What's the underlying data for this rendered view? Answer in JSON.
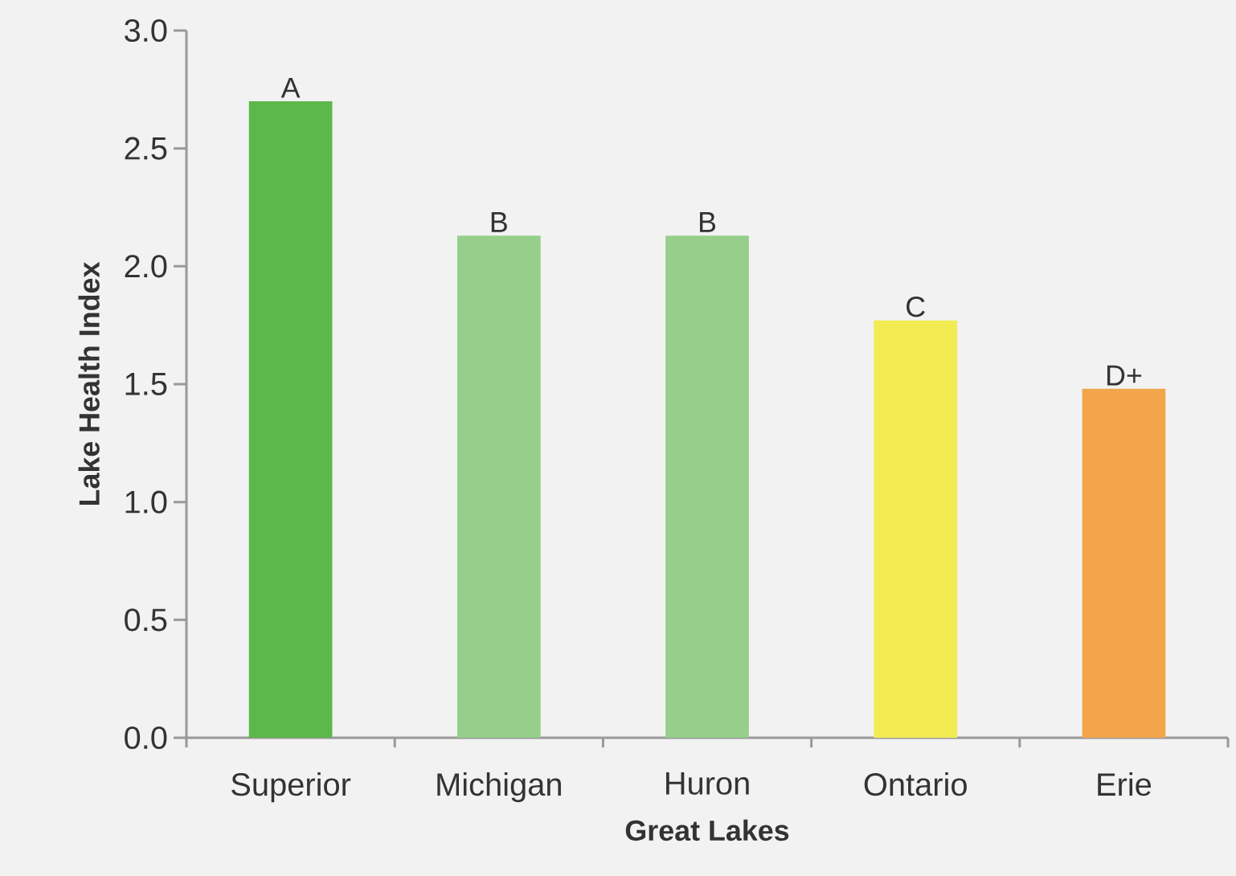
{
  "chart_data": {
    "type": "bar",
    "xlabel": "Great Lakes",
    "ylabel": "Lake Health Index",
    "categories": [
      "Superior",
      "Michigan",
      "Huron",
      "Ontario",
      "Erie"
    ],
    "values": [
      2.7,
      2.13,
      2.13,
      1.77,
      1.48
    ],
    "colors": [
      "#5cb84a",
      "#95cf8b",
      "#95cf8b",
      "#f2ec52",
      "#f2a54a"
    ],
    "value_labels": [
      "A",
      "B",
      "B",
      "C",
      "D+"
    ],
    "ylim": [
      0,
      3
    ],
    "yticks": [
      {
        "value": 0,
        "label": "0.0"
      },
      {
        "value": 0.5,
        "label": "0.5"
      },
      {
        "value": 1,
        "label": "1.0"
      },
      {
        "value": 1.5,
        "label": "1.5"
      },
      {
        "value": 2,
        "label": "2.0"
      },
      {
        "value": 2.5,
        "label": "2.5"
      },
      {
        "value": 3,
        "label": "3.0"
      }
    ]
  }
}
